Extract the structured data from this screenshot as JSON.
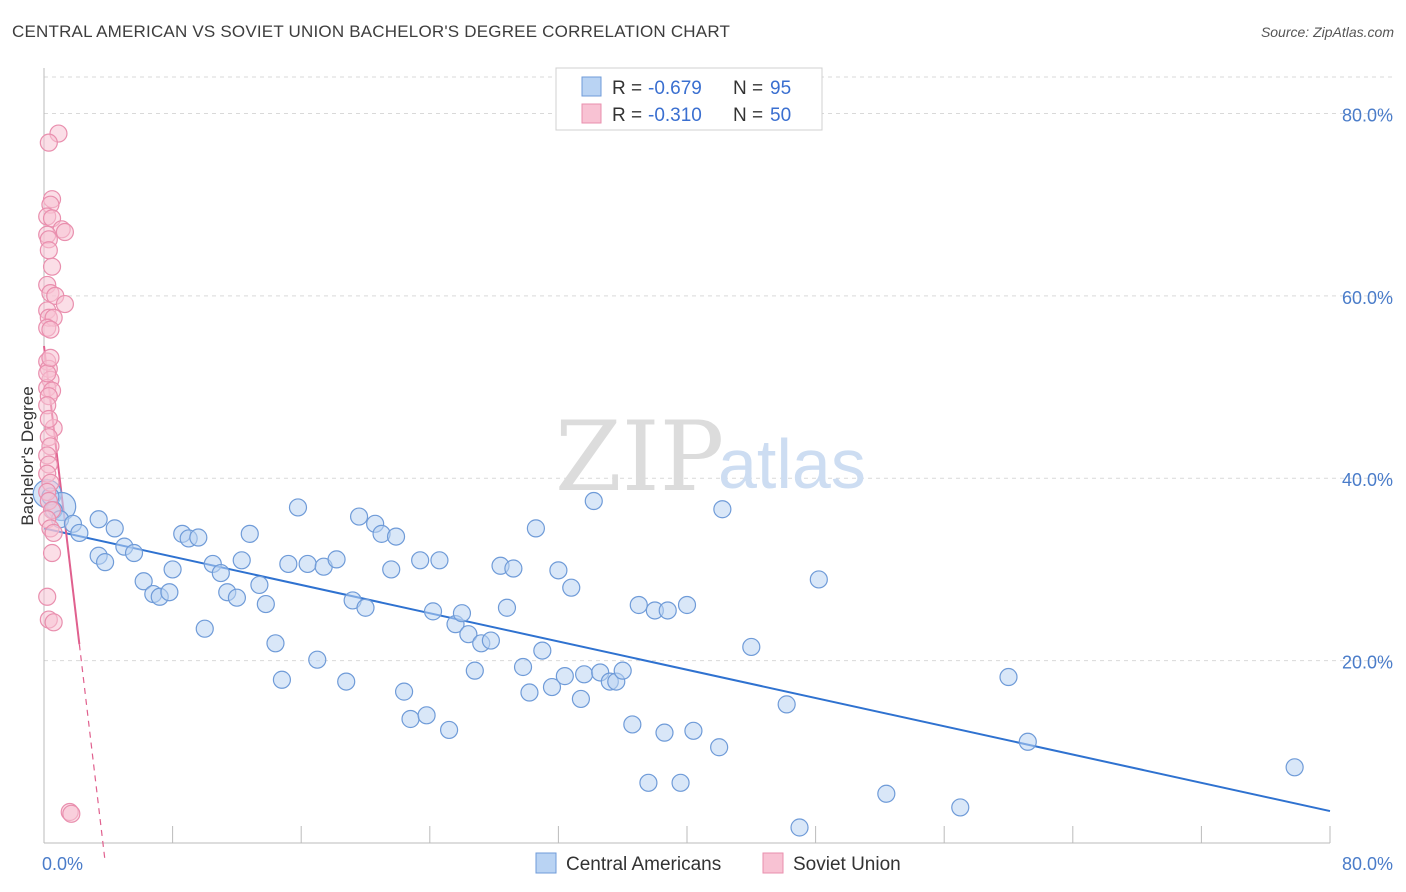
{
  "title": "CENTRAL AMERICAN VS SOVIET UNION BACHELOR'S DEGREE CORRELATION CHART",
  "source": "Source: ZipAtlas.com",
  "watermark": {
    "zip": "ZIP",
    "atlas": "atlas"
  },
  "colors": {
    "blue_fill": "#b9d3f3",
    "blue_stroke": "#6f9bd8",
    "blue_line": "#2f72d0",
    "pink_fill": "#f8c2d3",
    "pink_stroke": "#e98fae",
    "pink_line": "#e0608e",
    "grid": "#d9d9d9",
    "axis": "#bbbbbb"
  },
  "legend": {
    "rows": [
      {
        "r_label": "R = ",
        "r_value": "-0.679",
        "n_label": "N = ",
        "n_value": "95"
      },
      {
        "r_label": "R = ",
        "r_value": "-0.310",
        "n_label": "N = ",
        "n_value": "50"
      }
    ]
  },
  "chart_data": {
    "type": "scatter",
    "title": "CENTRAL AMERICAN VS SOVIET UNION BACHELOR'S DEGREE CORRELATION CHART",
    "xlabel": "",
    "ylabel": "Bachelor's Degree",
    "xlim": [
      0,
      80
    ],
    "ylim": [
      0,
      84
    ],
    "y_ticks": [
      {
        "value": 20,
        "label": "20.0%"
      },
      {
        "value": 40,
        "label": "40.0%"
      },
      {
        "value": 60,
        "label": "60.0%"
      },
      {
        "value": 80,
        "label": "80.0%"
      }
    ],
    "x_tick_labels": [
      {
        "value": 0,
        "label": "0.0%"
      },
      {
        "value": 80,
        "label": "80.0%"
      }
    ],
    "x_minor_ticks": [
      0,
      8,
      16,
      24,
      32,
      40,
      48,
      56,
      64,
      72,
      80
    ],
    "legend_position": "bottom",
    "series": [
      {
        "name": "Central Americans",
        "color": "blue",
        "r": -0.679,
        "n": 95,
        "trend": {
          "x": [
            0,
            80
          ],
          "y": [
            34.5,
            3.5
          ],
          "solid_range": [
            0,
            80
          ]
        },
        "points": [
          [
            0.4,
            38.0
          ],
          [
            0.6,
            36.5
          ],
          [
            1.0,
            35.5
          ],
          [
            1.8,
            35.0
          ],
          [
            2.2,
            34.0
          ],
          [
            3.4,
            35.5
          ],
          [
            4.4,
            34.5
          ],
          [
            5.0,
            32.5
          ],
          [
            3.4,
            31.5
          ],
          [
            3.8,
            30.8
          ],
          [
            5.6,
            31.8
          ],
          [
            6.2,
            28.7
          ],
          [
            6.8,
            27.3
          ],
          [
            7.2,
            27.0
          ],
          [
            7.8,
            27.5
          ],
          [
            8.0,
            30.0
          ],
          [
            8.6,
            33.9
          ],
          [
            9.0,
            33.4
          ],
          [
            9.6,
            33.5
          ],
          [
            10.0,
            23.5
          ],
          [
            10.5,
            30.6
          ],
          [
            11.0,
            29.6
          ],
          [
            11.4,
            27.5
          ],
          [
            12.0,
            26.9
          ],
          [
            12.3,
            31.0
          ],
          [
            12.8,
            33.9
          ],
          [
            13.4,
            28.3
          ],
          [
            13.8,
            26.2
          ],
          [
            14.4,
            21.9
          ],
          [
            14.8,
            17.9
          ],
          [
            15.2,
            30.6
          ],
          [
            15.8,
            36.8
          ],
          [
            16.4,
            30.6
          ],
          [
            17.0,
            20.1
          ],
          [
            17.4,
            30.3
          ],
          [
            18.2,
            31.1
          ],
          [
            18.8,
            17.7
          ],
          [
            19.2,
            26.6
          ],
          [
            19.6,
            35.8
          ],
          [
            20.0,
            25.8
          ],
          [
            20.6,
            35.0
          ],
          [
            21.0,
            33.9
          ],
          [
            21.6,
            30.0
          ],
          [
            21.9,
            33.6
          ],
          [
            22.4,
            16.6
          ],
          [
            22.8,
            13.6
          ],
          [
            23.4,
            31.0
          ],
          [
            23.8,
            14.0
          ],
          [
            24.2,
            25.4
          ],
          [
            24.6,
            31.0
          ],
          [
            25.2,
            12.4
          ],
          [
            25.6,
            24.0
          ],
          [
            26.0,
            25.2
          ],
          [
            26.4,
            22.9
          ],
          [
            26.8,
            18.9
          ],
          [
            27.2,
            21.9
          ],
          [
            27.8,
            22.2
          ],
          [
            28.4,
            30.4
          ],
          [
            28.8,
            25.8
          ],
          [
            29.2,
            30.1
          ],
          [
            29.8,
            19.3
          ],
          [
            30.2,
            16.5
          ],
          [
            30.6,
            34.5
          ],
          [
            31.0,
            21.1
          ],
          [
            31.6,
            17.1
          ],
          [
            32.0,
            29.9
          ],
          [
            32.4,
            18.3
          ],
          [
            32.8,
            28.0
          ],
          [
            33.4,
            15.8
          ],
          [
            33.6,
            18.5
          ],
          [
            34.2,
            37.5
          ],
          [
            34.6,
            18.7
          ],
          [
            35.2,
            17.7
          ],
          [
            35.6,
            17.7
          ],
          [
            36.0,
            18.9
          ],
          [
            36.6,
            13.0
          ],
          [
            37.0,
            26.1
          ],
          [
            37.6,
            6.6
          ],
          [
            38.0,
            25.5
          ],
          [
            38.6,
            12.1
          ],
          [
            38.8,
            25.5
          ],
          [
            39.6,
            6.6
          ],
          [
            40.0,
            26.1
          ],
          [
            40.4,
            12.3
          ],
          [
            42.0,
            10.5
          ],
          [
            42.2,
            36.6
          ],
          [
            44.0,
            21.5
          ],
          [
            46.2,
            15.2
          ],
          [
            47.0,
            1.7
          ],
          [
            48.2,
            28.9
          ],
          [
            52.4,
            5.4
          ],
          [
            57.0,
            3.9
          ],
          [
            60.0,
            18.2
          ],
          [
            61.2,
            11.1
          ],
          [
            77.8,
            8.3
          ]
        ],
        "large_points": [
          [
            0.2,
            38.3
          ],
          [
            1.1,
            36.9
          ]
        ]
      },
      {
        "name": "Soviet Union",
        "color": "pink",
        "r": -0.31,
        "n": 50,
        "trend": {
          "x": [
            0,
            3.8
          ],
          "y": [
            54.5,
            -2.0
          ],
          "solid_range": [
            0,
            2.2
          ]
        },
        "points": [
          [
            0.9,
            77.8
          ],
          [
            0.3,
            76.8
          ],
          [
            0.5,
            70.6
          ],
          [
            0.4,
            70.0
          ],
          [
            0.2,
            68.7
          ],
          [
            0.5,
            68.5
          ],
          [
            1.1,
            67.3
          ],
          [
            1.3,
            67.0
          ],
          [
            0.2,
            66.7
          ],
          [
            0.3,
            66.2
          ],
          [
            0.5,
            63.2
          ],
          [
            0.2,
            61.2
          ],
          [
            0.4,
            60.3
          ],
          [
            0.7,
            60.0
          ],
          [
            1.3,
            59.1
          ],
          [
            0.2,
            58.4
          ],
          [
            0.3,
            57.6
          ],
          [
            0.6,
            57.6
          ],
          [
            0.2,
            56.5
          ],
          [
            0.4,
            56.3
          ],
          [
            0.2,
            52.8
          ],
          [
            0.3,
            52.0
          ],
          [
            0.4,
            50.8
          ],
          [
            0.2,
            49.9
          ],
          [
            0.5,
            49.6
          ],
          [
            0.3,
            49.0
          ],
          [
            0.2,
            48.0
          ],
          [
            0.6,
            45.5
          ],
          [
            0.3,
            44.5
          ],
          [
            0.4,
            43.5
          ],
          [
            0.2,
            42.5
          ],
          [
            0.3,
            41.5
          ],
          [
            0.2,
            40.5
          ],
          [
            0.4,
            39.5
          ],
          [
            0.2,
            38.5
          ],
          [
            0.3,
            37.5
          ],
          [
            0.5,
            36.5
          ],
          [
            0.2,
            35.5
          ],
          [
            0.4,
            34.5
          ],
          [
            0.6,
            34.0
          ],
          [
            0.5,
            31.8
          ],
          [
            0.3,
            24.5
          ],
          [
            0.6,
            24.2
          ],
          [
            1.6,
            3.4
          ],
          [
            1.7,
            3.2
          ],
          [
            0.2,
            27.0
          ],
          [
            0.3,
            46.5
          ],
          [
            0.2,
            51.5
          ],
          [
            0.4,
            53.2
          ],
          [
            0.3,
            65.0
          ]
        ],
        "large_points": []
      }
    ]
  },
  "bottom_legend": [
    {
      "label": "Central Americans",
      "color": "blue"
    },
    {
      "label": "Soviet Union",
      "color": "pink"
    }
  ]
}
